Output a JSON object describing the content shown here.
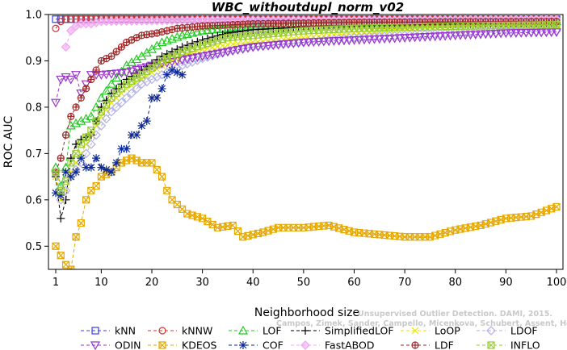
{
  "chart_data": {
    "type": "line",
    "title": "WBC_withoutdupl_norm_v02",
    "xlabel": "Neighborhood size",
    "ylabel": "ROC AUC",
    "xlim": [
      1,
      100
    ],
    "ylim": [
      0.45,
      1.0
    ],
    "xticks": [
      1,
      10,
      20,
      30,
      40,
      50,
      60,
      70,
      80,
      90,
      100
    ],
    "yticks": [
      0.5,
      0.6,
      0.7,
      0.8,
      0.9,
      1.0
    ],
    "ytick_labels": [
      "0.5",
      "0.6",
      "0.7",
      "0.8",
      "0.9",
      "1.0"
    ],
    "legend_position": "bottom",
    "watermark": [
      "Unsupervised Outlier Detection. DAMI, 2015.",
      "Campos, Zimek, Sander, Campello, Micenkova, Schubert, Assent, Houle"
    ],
    "x": [
      1,
      2,
      3,
      4,
      5,
      6,
      7,
      8,
      9,
      10,
      11,
      12,
      13,
      14,
      15,
      16,
      17,
      18,
      19,
      20,
      21,
      22,
      23,
      24,
      25,
      26,
      27,
      28,
      29,
      30,
      31,
      32,
      33,
      34,
      35,
      36,
      37,
      38,
      39,
      40,
      41,
      42,
      43,
      44,
      45,
      46,
      47,
      48,
      49,
      50,
      51,
      52,
      53,
      54,
      55,
      56,
      57,
      58,
      59,
      60,
      61,
      62,
      63,
      64,
      65,
      66,
      67,
      68,
      69,
      70,
      71,
      72,
      73,
      74,
      75,
      76,
      77,
      78,
      79,
      80,
      81,
      82,
      83,
      84,
      85,
      86,
      87,
      88,
      89,
      90,
      91,
      92,
      93,
      94,
      95,
      96,
      97,
      98,
      99,
      100
    ],
    "series": [
      {
        "name": "kNN",
        "color": "#3a3af0",
        "marker": "square",
        "dash": "4,3",
        "anchors": [
          [
            1,
            0.99
          ],
          [
            2,
            0.99
          ],
          [
            4,
            0.99
          ],
          [
            10,
            0.99
          ],
          [
            30,
            0.99
          ],
          [
            60,
            0.99
          ],
          [
            100,
            0.99
          ]
        ]
      },
      {
        "name": "kNNW",
        "color": "#d03535",
        "marker": "circle",
        "dash": "4,3",
        "anchors": [
          [
            1,
            0.97
          ],
          [
            2,
            0.985
          ],
          [
            3,
            0.99
          ],
          [
            10,
            0.99
          ],
          [
            30,
            0.99
          ],
          [
            100,
            0.99
          ]
        ]
      },
      {
        "name": "LOF",
        "color": "#22cc22",
        "marker": "triangle-up",
        "dash": "4,3",
        "anchors": [
          [
            1,
            0.67
          ],
          [
            2,
            0.63
          ],
          [
            3,
            0.67
          ],
          [
            4,
            0.76
          ],
          [
            6,
            0.77
          ],
          [
            8,
            0.78
          ],
          [
            10,
            0.82
          ],
          [
            12,
            0.85
          ],
          [
            15,
            0.89
          ],
          [
            18,
            0.91
          ],
          [
            22,
            0.94
          ],
          [
            26,
            0.955
          ],
          [
            30,
            0.965
          ],
          [
            35,
            0.97
          ],
          [
            40,
            0.975
          ],
          [
            50,
            0.98
          ],
          [
            60,
            0.982
          ],
          [
            80,
            0.985
          ],
          [
            100,
            0.985
          ]
        ]
      },
      {
        "name": "SimplifiedLOF",
        "color": "#000000",
        "marker": "plus",
        "dash": "4,3",
        "anchors": [
          [
            1,
            0.65
          ],
          [
            2,
            0.56
          ],
          [
            3,
            0.6
          ],
          [
            4,
            0.69
          ],
          [
            5,
            0.72
          ],
          [
            6,
            0.73
          ],
          [
            8,
            0.74
          ],
          [
            10,
            0.8
          ],
          [
            12,
            0.83
          ],
          [
            15,
            0.86
          ],
          [
            18,
            0.88
          ],
          [
            22,
            0.91
          ],
          [
            26,
            0.93
          ],
          [
            30,
            0.945
          ],
          [
            35,
            0.96
          ],
          [
            40,
            0.967
          ],
          [
            50,
            0.973
          ],
          [
            60,
            0.977
          ],
          [
            80,
            0.98
          ],
          [
            100,
            0.982
          ]
        ]
      },
      {
        "name": "LoOP",
        "color": "#e6e600",
        "marker": "x",
        "dash": "4,3",
        "anchors": [
          [
            1,
            0.65
          ],
          [
            2,
            0.6
          ],
          [
            3,
            0.62
          ],
          [
            4,
            0.66
          ],
          [
            6,
            0.7
          ],
          [
            8,
            0.74
          ],
          [
            10,
            0.78
          ],
          [
            12,
            0.81
          ],
          [
            15,
            0.84
          ],
          [
            18,
            0.86
          ],
          [
            22,
            0.89
          ],
          [
            26,
            0.91
          ],
          [
            30,
            0.925
          ],
          [
            35,
            0.935
          ],
          [
            40,
            0.94
          ],
          [
            50,
            0.95
          ],
          [
            60,
            0.96
          ],
          [
            70,
            0.97
          ],
          [
            80,
            0.975
          ],
          [
            100,
            0.98
          ]
        ]
      },
      {
        "name": "LDOF",
        "color": "#b0b0e8",
        "marker": "diamond",
        "dash": "4,3",
        "anchors": [
          [
            1,
            0.66
          ],
          [
            2,
            0.6
          ],
          [
            3,
            0.62
          ],
          [
            4,
            0.65
          ],
          [
            6,
            0.68
          ],
          [
            8,
            0.72
          ],
          [
            10,
            0.76
          ],
          [
            12,
            0.79
          ],
          [
            15,
            0.82
          ],
          [
            18,
            0.85
          ],
          [
            22,
            0.87
          ],
          [
            26,
            0.89
          ],
          [
            30,
            0.905
          ],
          [
            35,
            0.92
          ],
          [
            40,
            0.93
          ],
          [
            50,
            0.94
          ],
          [
            60,
            0.95
          ],
          [
            70,
            0.955
          ],
          [
            80,
            0.96
          ],
          [
            100,
            0.965
          ]
        ]
      },
      {
        "name": "ODIN",
        "color": "#9933cc",
        "marker": "triangle-down",
        "dash": "4,3",
        "anchors": [
          [
            1,
            0.81
          ],
          [
            2,
            0.86
          ],
          [
            3,
            0.865
          ],
          [
            4,
            0.86
          ],
          [
            5,
            0.87
          ],
          [
            6,
            0.83
          ],
          [
            7,
            0.85
          ],
          [
            8,
            0.87
          ],
          [
            10,
            0.87
          ],
          [
            15,
            0.875
          ],
          [
            20,
            0.89
          ],
          [
            25,
            0.9
          ],
          [
            30,
            0.91
          ],
          [
            35,
            0.92
          ],
          [
            40,
            0.93
          ],
          [
            50,
            0.94
          ],
          [
            60,
            0.945
          ],
          [
            70,
            0.95
          ],
          [
            80,
            0.955
          ],
          [
            90,
            0.96
          ],
          [
            100,
            0.962
          ]
        ]
      },
      {
        "name": "KDEOS",
        "color": "#e6a800",
        "marker": "boxed-x",
        "dash": "4,3",
        "anchors": [
          [
            1,
            0.5
          ],
          [
            2,
            0.48
          ],
          [
            3,
            0.46
          ],
          [
            4,
            0.45
          ],
          [
            5,
            0.52
          ],
          [
            6,
            0.55
          ],
          [
            7,
            0.6
          ],
          [
            8,
            0.62
          ],
          [
            9,
            0.63
          ],
          [
            10,
            0.65
          ],
          [
            12,
            0.66
          ],
          [
            14,
            0.68
          ],
          [
            16,
            0.69
          ],
          [
            18,
            0.68
          ],
          [
            20,
            0.68
          ],
          [
            22,
            0.65
          ],
          [
            23,
            0.62
          ],
          [
            24,
            0.6
          ],
          [
            25,
            0.59
          ],
          [
            26,
            0.58
          ],
          [
            27,
            0.57
          ],
          [
            30,
            0.56
          ],
          [
            33,
            0.54
          ],
          [
            36,
            0.545
          ],
          [
            38,
            0.52
          ],
          [
            42,
            0.53
          ],
          [
            45,
            0.54
          ],
          [
            50,
            0.54
          ],
          [
            55,
            0.545
          ],
          [
            60,
            0.53
          ],
          [
            65,
            0.525
          ],
          [
            70,
            0.52
          ],
          [
            75,
            0.52
          ],
          [
            80,
            0.535
          ],
          [
            85,
            0.545
          ],
          [
            90,
            0.56
          ],
          [
            95,
            0.565
          ],
          [
            100,
            0.585
          ]
        ]
      },
      {
        "name": "COF",
        "color": "#0e2a99",
        "marker": "asterisk",
        "dash": "4,3",
        "anchors": [
          [
            1,
            0.615
          ],
          [
            2,
            0.61
          ],
          [
            3,
            0.66
          ],
          [
            4,
            0.65
          ],
          [
            5,
            0.66
          ],
          [
            6,
            0.69
          ],
          [
            7,
            0.67
          ],
          [
            8,
            0.67
          ],
          [
            9,
            0.69
          ],
          [
            10,
            0.67
          ],
          [
            11,
            0.665
          ],
          [
            12,
            0.66
          ],
          [
            13,
            0.68
          ],
          [
            14,
            0.71
          ],
          [
            15,
            0.71
          ],
          [
            16,
            0.74
          ],
          [
            17,
            0.74
          ],
          [
            18,
            0.76
          ],
          [
            19,
            0.77
          ],
          [
            20,
            0.82
          ],
          [
            21,
            0.82
          ],
          [
            22,
            0.84
          ],
          [
            23,
            0.87
          ],
          [
            24,
            0.88
          ],
          [
            25,
            0.875
          ],
          [
            26,
            0.87
          ]
        ]
      },
      {
        "name": "FastABOD",
        "color": "#f0a8f0",
        "marker": "diamond-filled",
        "dash": "4,3",
        "anchors": [
          [
            3,
            0.93
          ],
          [
            4,
            0.965
          ],
          [
            5,
            0.975
          ],
          [
            6,
            0.98
          ],
          [
            8,
            0.98
          ],
          [
            10,
            0.985
          ],
          [
            30,
            0.988
          ],
          [
            60,
            0.988
          ],
          [
            100,
            0.99
          ]
        ]
      },
      {
        "name": "LDF",
        "color": "#a02828",
        "marker": "circle-plus",
        "dash": "4,3",
        "anchors": [
          [
            1,
            0.66
          ],
          [
            2,
            0.69
          ],
          [
            3,
            0.74
          ],
          [
            4,
            0.78
          ],
          [
            5,
            0.8
          ],
          [
            6,
            0.82
          ],
          [
            7,
            0.84
          ],
          [
            8,
            0.86
          ],
          [
            9,
            0.88
          ],
          [
            10,
            0.9
          ],
          [
            11,
            0.905
          ],
          [
            12,
            0.91
          ],
          [
            13,
            0.92
          ],
          [
            15,
            0.94
          ],
          [
            18,
            0.955
          ],
          [
            21,
            0.96
          ],
          [
            25,
            0.97
          ],
          [
            30,
            0.975
          ],
          [
            40,
            0.98
          ],
          [
            60,
            0.983
          ],
          [
            100,
            0.985
          ]
        ]
      },
      {
        "name": "INFLO",
        "color": "#99cc33",
        "marker": "boxed-x",
        "dash": "4,3",
        "anchors": [
          [
            1,
            0.66
          ],
          [
            2,
            0.62
          ],
          [
            3,
            0.64
          ],
          [
            4,
            0.68
          ],
          [
            6,
            0.72
          ],
          [
            8,
            0.75
          ],
          [
            10,
            0.79
          ],
          [
            12,
            0.82
          ],
          [
            15,
            0.85
          ],
          [
            18,
            0.87
          ],
          [
            22,
            0.9
          ],
          [
            26,
            0.92
          ],
          [
            30,
            0.935
          ],
          [
            35,
            0.95
          ],
          [
            40,
            0.955
          ],
          [
            50,
            0.965
          ],
          [
            60,
            0.97
          ],
          [
            80,
            0.975
          ],
          [
            100,
            0.978
          ]
        ]
      }
    ]
  }
}
